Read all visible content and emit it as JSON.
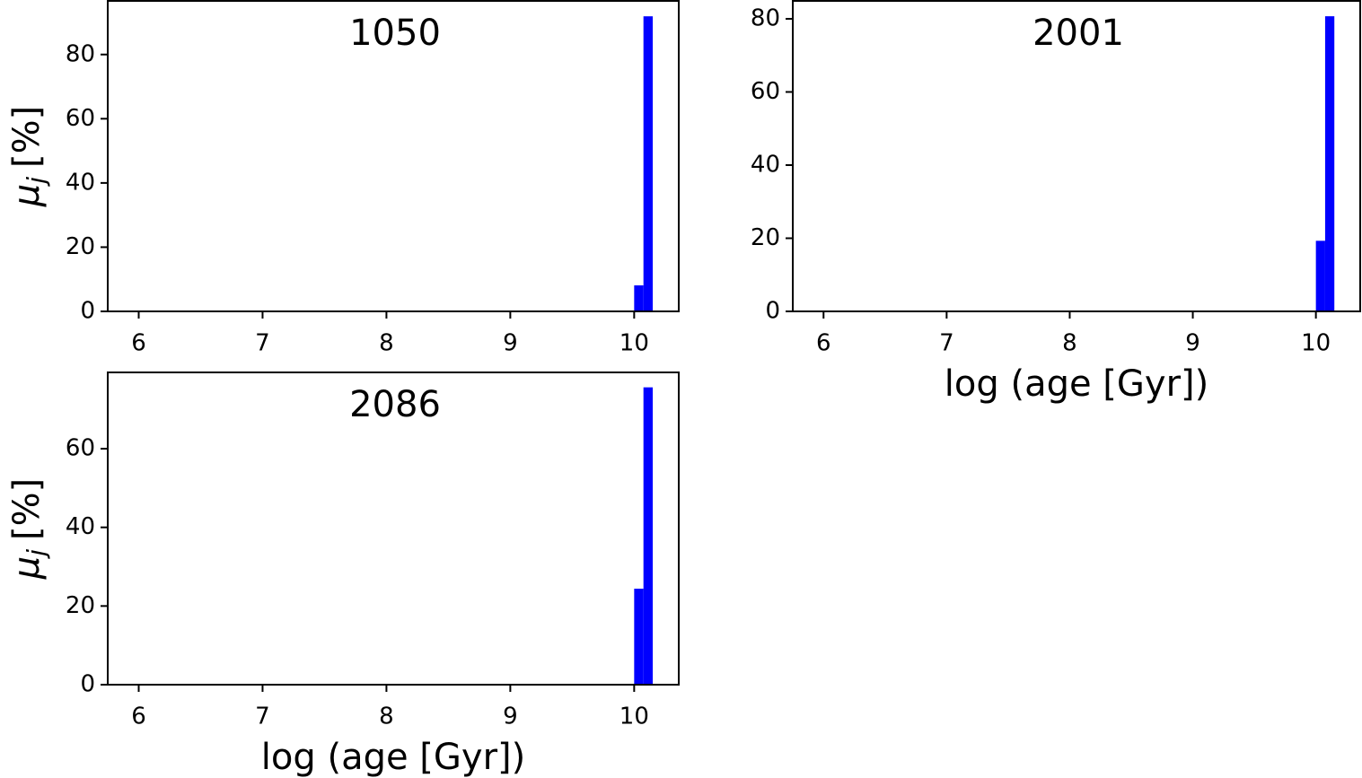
{
  "chart_data": [
    {
      "type": "histogram",
      "title": "1050",
      "ylabel_symbol": "μ",
      "ylabel_subscript": "j",
      "ylabel_unit": "[%]",
      "bins": [
        10.0,
        10.075,
        10.15
      ],
      "values": [
        8.1,
        91.9
      ],
      "color": "#0000ff",
      "xlim": [
        5.75,
        10.36
      ],
      "ylim": [
        0,
        96.7
      ],
      "xticks": [
        6,
        7,
        8,
        9,
        10
      ],
      "yticks": [
        0,
        20,
        40,
        60,
        80
      ]
    },
    {
      "type": "histogram",
      "title": "2001",
      "xlabel": "log (age [Gyr])",
      "bins": [
        10.0,
        10.075,
        10.15
      ],
      "values": [
        19.3,
        80.7
      ],
      "color": "#0000ff",
      "xlim": [
        5.75,
        10.36
      ],
      "ylim": [
        0,
        84.9
      ],
      "xticks": [
        6,
        7,
        8,
        9,
        10
      ],
      "yticks": [
        0,
        20,
        40,
        60,
        80
      ]
    },
    {
      "type": "histogram",
      "title": "2086",
      "xlabel": "log (age [Gyr])",
      "ylabel_symbol": "μ",
      "ylabel_subscript": "j",
      "ylabel_unit": "[%]",
      "bins": [
        10.0,
        10.075,
        10.15
      ],
      "values": [
        24.4,
        75.6
      ],
      "color": "#0000ff",
      "xlim": [
        5.75,
        10.36
      ],
      "ylim": [
        0,
        79.4
      ],
      "xticks": [
        6,
        7,
        8,
        9,
        10
      ],
      "yticks": [
        0,
        20,
        40,
        60
      ]
    }
  ]
}
